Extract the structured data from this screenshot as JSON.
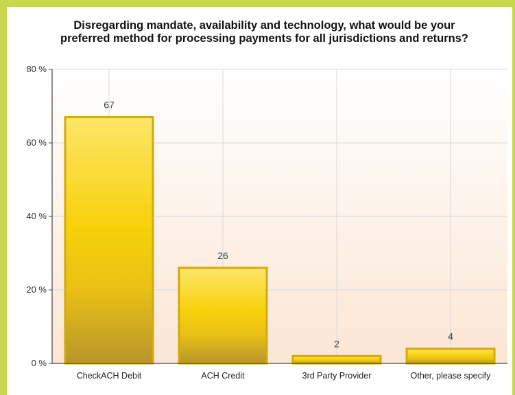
{
  "chart_data": {
    "type": "bar",
    "title_lines": [
      "Disregarding mandate, availability and technology, what would be your",
      "preferred method for processing payments for all jurisdictions and returns?"
    ],
    "categories": [
      "CheckACH Debit",
      "ACH Credit",
      "3rd Party Provider",
      "Other, please specify"
    ],
    "values": [
      67,
      26,
      2,
      4
    ],
    "data_labels": [
      "67",
      "26",
      "2",
      "4"
    ],
    "ylim": [
      0,
      80
    ],
    "yticks": [
      0,
      20,
      40,
      60,
      80
    ],
    "ytick_labels": [
      "0 %",
      "20 %",
      "40 %",
      "60 %",
      "80 %"
    ],
    "grid": true,
    "legend": "none",
    "colors": {
      "bar_top": "#fde66a",
      "bar_mid": "#f7d10a",
      "bar_bottom": "#b8952c",
      "bar_border": "#d4a90a",
      "frame": "#c7d84e",
      "plot_bg_top": "#ffffff",
      "plot_bg_bottom": "#fbe6d4"
    }
  }
}
